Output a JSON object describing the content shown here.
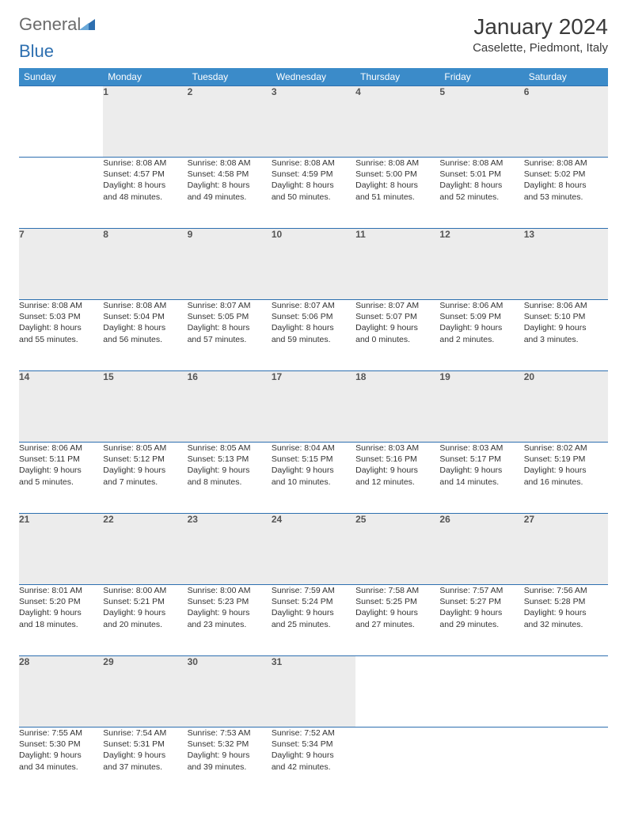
{
  "logo": {
    "text_general": "General",
    "text_blue": "Blue"
  },
  "title": "January 2024",
  "location": "Caselette, Piedmont, Italy",
  "colors": {
    "header_bg": "#3b8bc9",
    "header_text": "#ffffff",
    "daynum_bg": "#ececec",
    "border": "#2d6fb0",
    "logo_gray": "#6b6b6b",
    "logo_blue": "#2d6fb0"
  },
  "weekdays": [
    "Sunday",
    "Monday",
    "Tuesday",
    "Wednesday",
    "Thursday",
    "Friday",
    "Saturday"
  ],
  "weeks": [
    [
      null,
      {
        "n": "1",
        "sunrise": "Sunrise: 8:08 AM",
        "sunset": "Sunset: 4:57 PM",
        "day1": "Daylight: 8 hours",
        "day2": "and 48 minutes."
      },
      {
        "n": "2",
        "sunrise": "Sunrise: 8:08 AM",
        "sunset": "Sunset: 4:58 PM",
        "day1": "Daylight: 8 hours",
        "day2": "and 49 minutes."
      },
      {
        "n": "3",
        "sunrise": "Sunrise: 8:08 AM",
        "sunset": "Sunset: 4:59 PM",
        "day1": "Daylight: 8 hours",
        "day2": "and 50 minutes."
      },
      {
        "n": "4",
        "sunrise": "Sunrise: 8:08 AM",
        "sunset": "Sunset: 5:00 PM",
        "day1": "Daylight: 8 hours",
        "day2": "and 51 minutes."
      },
      {
        "n": "5",
        "sunrise": "Sunrise: 8:08 AM",
        "sunset": "Sunset: 5:01 PM",
        "day1": "Daylight: 8 hours",
        "day2": "and 52 minutes."
      },
      {
        "n": "6",
        "sunrise": "Sunrise: 8:08 AM",
        "sunset": "Sunset: 5:02 PM",
        "day1": "Daylight: 8 hours",
        "day2": "and 53 minutes."
      }
    ],
    [
      {
        "n": "7",
        "sunrise": "Sunrise: 8:08 AM",
        "sunset": "Sunset: 5:03 PM",
        "day1": "Daylight: 8 hours",
        "day2": "and 55 minutes."
      },
      {
        "n": "8",
        "sunrise": "Sunrise: 8:08 AM",
        "sunset": "Sunset: 5:04 PM",
        "day1": "Daylight: 8 hours",
        "day2": "and 56 minutes."
      },
      {
        "n": "9",
        "sunrise": "Sunrise: 8:07 AM",
        "sunset": "Sunset: 5:05 PM",
        "day1": "Daylight: 8 hours",
        "day2": "and 57 minutes."
      },
      {
        "n": "10",
        "sunrise": "Sunrise: 8:07 AM",
        "sunset": "Sunset: 5:06 PM",
        "day1": "Daylight: 8 hours",
        "day2": "and 59 minutes."
      },
      {
        "n": "11",
        "sunrise": "Sunrise: 8:07 AM",
        "sunset": "Sunset: 5:07 PM",
        "day1": "Daylight: 9 hours",
        "day2": "and 0 minutes."
      },
      {
        "n": "12",
        "sunrise": "Sunrise: 8:06 AM",
        "sunset": "Sunset: 5:09 PM",
        "day1": "Daylight: 9 hours",
        "day2": "and 2 minutes."
      },
      {
        "n": "13",
        "sunrise": "Sunrise: 8:06 AM",
        "sunset": "Sunset: 5:10 PM",
        "day1": "Daylight: 9 hours",
        "day2": "and 3 minutes."
      }
    ],
    [
      {
        "n": "14",
        "sunrise": "Sunrise: 8:06 AM",
        "sunset": "Sunset: 5:11 PM",
        "day1": "Daylight: 9 hours",
        "day2": "and 5 minutes."
      },
      {
        "n": "15",
        "sunrise": "Sunrise: 8:05 AM",
        "sunset": "Sunset: 5:12 PM",
        "day1": "Daylight: 9 hours",
        "day2": "and 7 minutes."
      },
      {
        "n": "16",
        "sunrise": "Sunrise: 8:05 AM",
        "sunset": "Sunset: 5:13 PM",
        "day1": "Daylight: 9 hours",
        "day2": "and 8 minutes."
      },
      {
        "n": "17",
        "sunrise": "Sunrise: 8:04 AM",
        "sunset": "Sunset: 5:15 PM",
        "day1": "Daylight: 9 hours",
        "day2": "and 10 minutes."
      },
      {
        "n": "18",
        "sunrise": "Sunrise: 8:03 AM",
        "sunset": "Sunset: 5:16 PM",
        "day1": "Daylight: 9 hours",
        "day2": "and 12 minutes."
      },
      {
        "n": "19",
        "sunrise": "Sunrise: 8:03 AM",
        "sunset": "Sunset: 5:17 PM",
        "day1": "Daylight: 9 hours",
        "day2": "and 14 minutes."
      },
      {
        "n": "20",
        "sunrise": "Sunrise: 8:02 AM",
        "sunset": "Sunset: 5:19 PM",
        "day1": "Daylight: 9 hours",
        "day2": "and 16 minutes."
      }
    ],
    [
      {
        "n": "21",
        "sunrise": "Sunrise: 8:01 AM",
        "sunset": "Sunset: 5:20 PM",
        "day1": "Daylight: 9 hours",
        "day2": "and 18 minutes."
      },
      {
        "n": "22",
        "sunrise": "Sunrise: 8:00 AM",
        "sunset": "Sunset: 5:21 PM",
        "day1": "Daylight: 9 hours",
        "day2": "and 20 minutes."
      },
      {
        "n": "23",
        "sunrise": "Sunrise: 8:00 AM",
        "sunset": "Sunset: 5:23 PM",
        "day1": "Daylight: 9 hours",
        "day2": "and 23 minutes."
      },
      {
        "n": "24",
        "sunrise": "Sunrise: 7:59 AM",
        "sunset": "Sunset: 5:24 PM",
        "day1": "Daylight: 9 hours",
        "day2": "and 25 minutes."
      },
      {
        "n": "25",
        "sunrise": "Sunrise: 7:58 AM",
        "sunset": "Sunset: 5:25 PM",
        "day1": "Daylight: 9 hours",
        "day2": "and 27 minutes."
      },
      {
        "n": "26",
        "sunrise": "Sunrise: 7:57 AM",
        "sunset": "Sunset: 5:27 PM",
        "day1": "Daylight: 9 hours",
        "day2": "and 29 minutes."
      },
      {
        "n": "27",
        "sunrise": "Sunrise: 7:56 AM",
        "sunset": "Sunset: 5:28 PM",
        "day1": "Daylight: 9 hours",
        "day2": "and 32 minutes."
      }
    ],
    [
      {
        "n": "28",
        "sunrise": "Sunrise: 7:55 AM",
        "sunset": "Sunset: 5:30 PM",
        "day1": "Daylight: 9 hours",
        "day2": "and 34 minutes."
      },
      {
        "n": "29",
        "sunrise": "Sunrise: 7:54 AM",
        "sunset": "Sunset: 5:31 PM",
        "day1": "Daylight: 9 hours",
        "day2": "and 37 minutes."
      },
      {
        "n": "30",
        "sunrise": "Sunrise: 7:53 AM",
        "sunset": "Sunset: 5:32 PM",
        "day1": "Daylight: 9 hours",
        "day2": "and 39 minutes."
      },
      {
        "n": "31",
        "sunrise": "Sunrise: 7:52 AM",
        "sunset": "Sunset: 5:34 PM",
        "day1": "Daylight: 9 hours",
        "day2": "and 42 minutes."
      },
      null,
      null,
      null
    ]
  ]
}
